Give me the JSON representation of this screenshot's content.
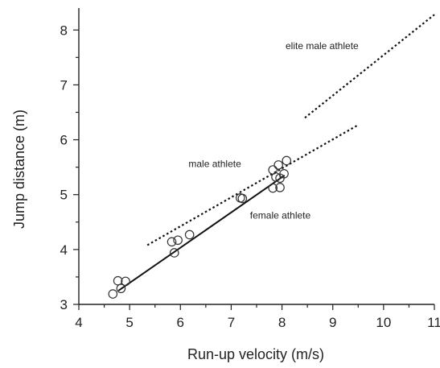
{
  "chart_data": {
    "type": "scatter",
    "xlabel": "Run-up velocity (m/s)",
    "ylabel": "Jump distance (m)",
    "xlim": [
      4,
      11
    ],
    "ylim": [
      3,
      8.4
    ],
    "xticks": [
      "4",
      "5",
      "6",
      "7",
      "8",
      "9",
      "10",
      "11"
    ],
    "yticks": [
      "3",
      "4",
      "5",
      "6",
      "7",
      "8"
    ],
    "grid": false,
    "points": [
      {
        "x": 4.67,
        "y": 3.19
      },
      {
        "x": 4.77,
        "y": 3.43
      },
      {
        "x": 4.83,
        "y": 3.29
      },
      {
        "x": 4.92,
        "y": 3.42
      },
      {
        "x": 5.83,
        "y": 4.14
      },
      {
        "x": 5.88,
        "y": 3.94
      },
      {
        "x": 5.95,
        "y": 4.17
      },
      {
        "x": 6.18,
        "y": 4.27
      },
      {
        "x": 7.18,
        "y": 4.94
      },
      {
        "x": 7.22,
        "y": 4.93
      },
      {
        "x": 7.82,
        "y": 5.12
      },
      {
        "x": 7.82,
        "y": 5.45
      },
      {
        "x": 7.88,
        "y": 5.32
      },
      {
        "x": 7.93,
        "y": 5.54
      },
      {
        "x": 7.96,
        "y": 5.13
      },
      {
        "x": 7.96,
        "y": 5.3
      },
      {
        "x": 8.04,
        "y": 5.38
      },
      {
        "x": 8.09,
        "y": 5.62
      }
    ],
    "lines": [
      {
        "label": "female athlete",
        "style": "solid",
        "x": [
          4.78,
          8.05
        ],
        "y": [
          3.25,
          5.35
        ]
      },
      {
        "label": "male athlete",
        "style": "dotted",
        "x": [
          5.35,
          9.5
        ],
        "y": [
          4.08,
          6.27
        ]
      },
      {
        "label": "elite male athlete",
        "style": "dotted",
        "x": [
          8.45,
          11.0
        ],
        "y": [
          6.4,
          8.28
        ]
      }
    ],
    "annotations": [
      {
        "text": "elite male athlete",
        "x": 8.07,
        "y": 7.65
      },
      {
        "text": "male athlete",
        "x": 6.16,
        "y": 5.5
      },
      {
        "text": "female athlete",
        "x": 7.37,
        "y": 4.56
      }
    ]
  }
}
